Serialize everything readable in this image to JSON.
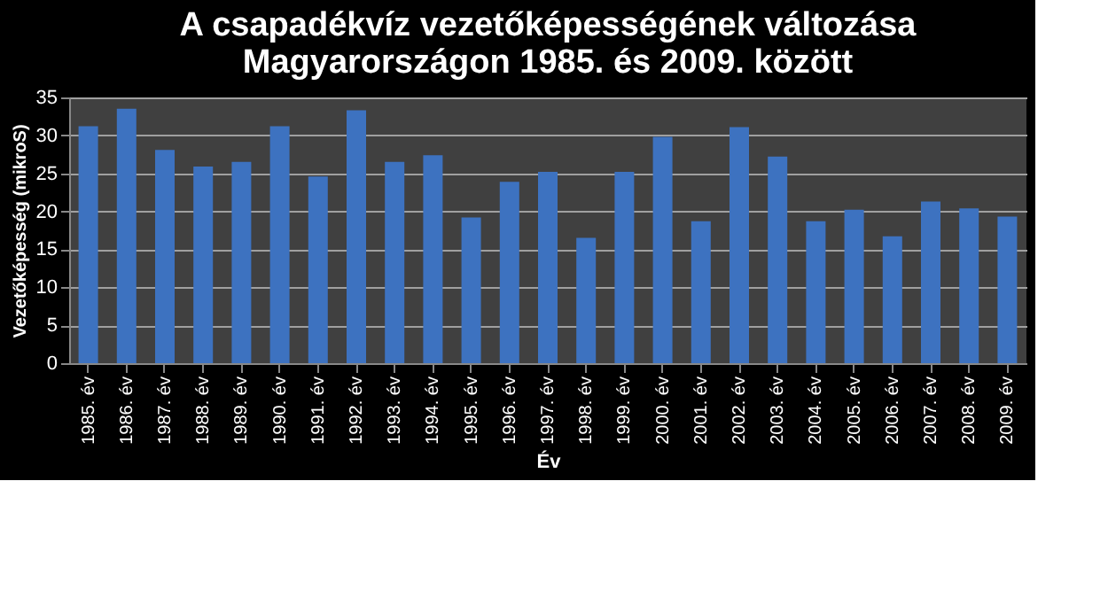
{
  "chart_data": {
    "type": "bar",
    "title": [
      "A csapadékvíz vezetőképességének változása",
      "Magyarországon 1985. és 2009. között"
    ],
    "xlabel": "Év",
    "ylabel": "Vezetőképesség (mikroS)",
    "categories": [
      "1985. év",
      "1986. év",
      "1987. év",
      "1988. év",
      "1989. év",
      "1990. év",
      "1991. év",
      "1992. év",
      "1993. év",
      "1994. év",
      "1995. év",
      "1996. év",
      "1997. év",
      "1998. év",
      "1999. év",
      "2000. év",
      "2001. év",
      "2002. év",
      "2003. év",
      "2004. év",
      "2005. év",
      "2006. év",
      "2007. év",
      "2008. év",
      "2009. év"
    ],
    "values": [
      31.2,
      33.5,
      28.1,
      25.9,
      26.5,
      31.2,
      24.6,
      33.3,
      26.5,
      27.4,
      19.2,
      23.9,
      25.2,
      16.5,
      25.2,
      29.8,
      18.7,
      31.1,
      27.2,
      18.7,
      20.2,
      16.7,
      21.3,
      20.4,
      19.3
    ],
    "color": "#3d72c0",
    "ylim": [
      0,
      35
    ],
    "yticks": [
      0,
      5,
      10,
      15,
      20,
      25,
      30,
      35
    ],
    "grid": "y"
  }
}
